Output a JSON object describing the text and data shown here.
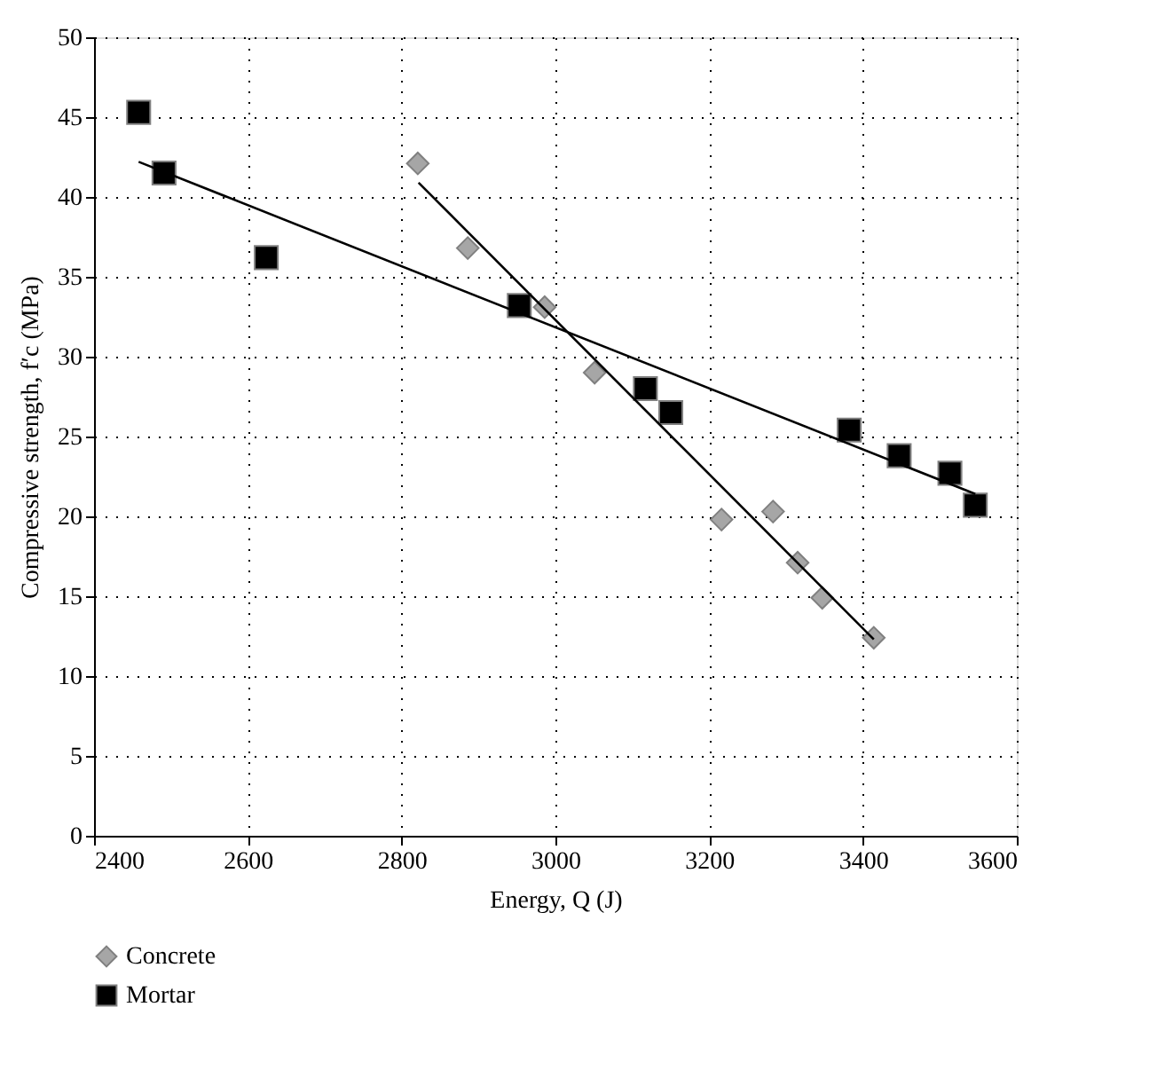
{
  "chart_data": {
    "type": "scatter",
    "xlabel": "Energy, Q (J)",
    "ylabel": "Compressive strength, f′c (MPa)",
    "xlim": [
      2400,
      3600
    ],
    "xticks": [
      2400,
      2600,
      2800,
      3000,
      3200,
      3400,
      3600
    ],
    "ylim": [
      0,
      50
    ],
    "yticks": [
      0,
      5,
      10,
      15,
      20,
      25,
      30,
      35,
      40,
      45,
      50
    ],
    "grid": true,
    "legend": "bottom",
    "series": [
      {
        "name": "Concrete",
        "marker": "diamond",
        "color": "#a6a6a6",
        "x": [
          2821,
          2886,
          2986,
          3051,
          3216,
          3283,
          3315,
          3347,
          3414
        ],
        "values": [
          42.1,
          36.8,
          33.1,
          29.0,
          19.8,
          20.3,
          17.1,
          14.9,
          12.4
        ]
      },
      {
        "name": "Mortar",
        "marker": "square",
        "color": "#000000",
        "x": [
          2458,
          2491,
          2624,
          2953,
          3117,
          3150,
          3382,
          3447,
          3513,
          3546
        ],
        "values": [
          45.3,
          41.5,
          36.2,
          33.2,
          28.0,
          26.5,
          25.4,
          23.8,
          22.7,
          20.7
        ]
      },
      {
        "type": "line",
        "marker": "none",
        "line_style": "solid",
        "color": "#000000",
        "x": [
          2822,
          3414
        ],
        "values": [
          40.9,
          12.3
        ]
      },
      {
        "type": "line",
        "marker": "none",
        "line_style": "solid",
        "color": "#000000",
        "x": [
          2458,
          3546
        ],
        "values": [
          42.2,
          21.4
        ]
      }
    ]
  }
}
